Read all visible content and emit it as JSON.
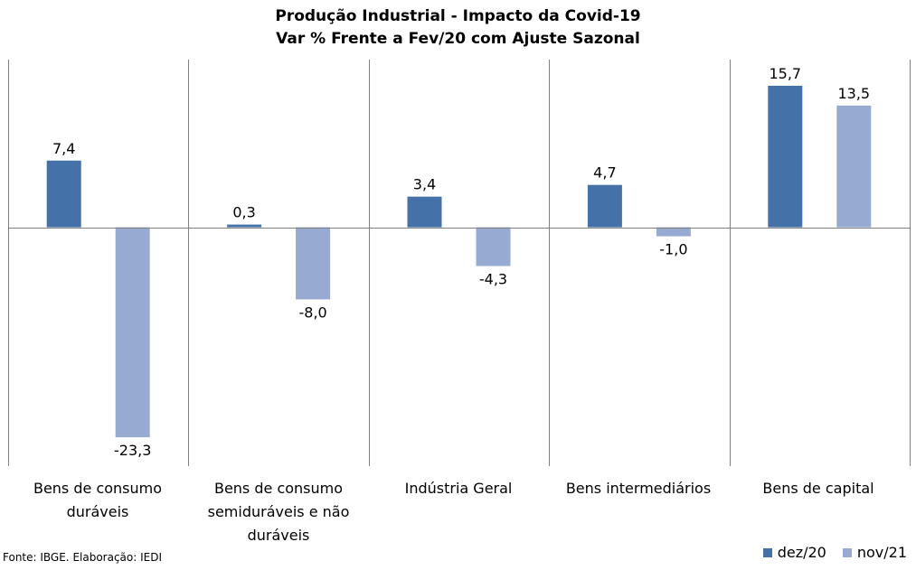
{
  "chart_data": {
    "type": "bar",
    "title": "Produção Industrial - Impacto da Covid-19",
    "subtitle": "Var % Frente a Fev/20 com Ajuste Sazonal",
    "categories": [
      "Bens de consumo duráveis",
      "Bens de consumo semiduráveis e não duráveis",
      "Indústria Geral",
      "Bens intermediários",
      "Bens de capital"
    ],
    "series": [
      {
        "name": "dez/20",
        "color": "#4472a8",
        "values": [
          7.4,
          0.3,
          3.4,
          4.7,
          15.7
        ],
        "labels": [
          "7,4",
          "0,3",
          "3,4",
          "4,7",
          "15,7"
        ]
      },
      {
        "name": "nov/21",
        "color": "#96aad2",
        "values": [
          -23.3,
          -8.0,
          -4.3,
          -1.0,
          13.5
        ],
        "labels": [
          "-23,3",
          "-8,0",
          "-4,3",
          "-1,0",
          "13,5"
        ]
      }
    ],
    "ylim": [
      -26.5,
      18.6
    ],
    "grid": false,
    "legend_position": "bottom-right",
    "source": "Fonte: IBGE. Elaboração: IEDI"
  }
}
